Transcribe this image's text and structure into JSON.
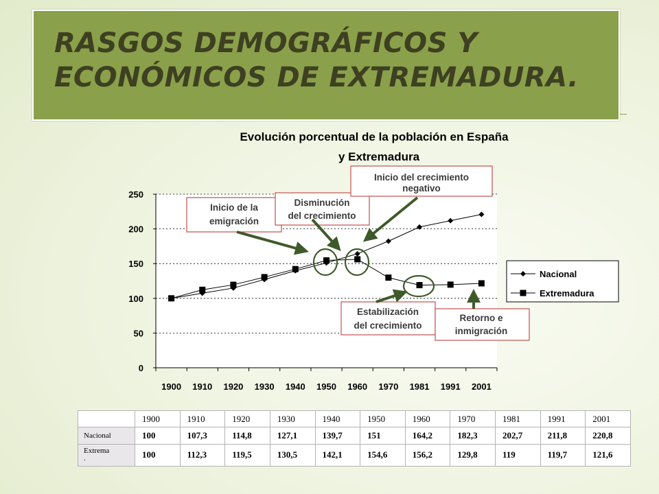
{
  "slide": {
    "title_line1": "RASGOS DEMOGRÁFICOS Y",
    "title_line2": "ECONÓMICOS DE EXTREMADURA."
  },
  "chart_data": {
    "type": "line",
    "title_line1": "Evolución porcentual de la población en España",
    "title_line2": "y  Extremadura",
    "categories": [
      "1900",
      "1910",
      "1920",
      "1930",
      "1940",
      "1950",
      "1960",
      "1970",
      "1981",
      "1991",
      "2001"
    ],
    "ylim": [
      0,
      250
    ],
    "yticks": [
      0,
      50,
      100,
      150,
      200,
      250
    ],
    "grid": true,
    "legend_position": "right",
    "series": [
      {
        "name": "Nacional",
        "marker": "diamond",
        "color": "#000000",
        "values": [
          100,
          107.3,
          114.8,
          127.1,
          139.7,
          151,
          164.2,
          182.3,
          202.7,
          211.8,
          220.8
        ]
      },
      {
        "name": "Extremadura",
        "marker": "square",
        "color": "#000000",
        "values": [
          100,
          112.3,
          119.5,
          130.5,
          142.1,
          154.6,
          156.2,
          129.8,
          119,
          119.7,
          121.6
        ]
      }
    ],
    "annotations": [
      {
        "lines": [
          "Inicio de la",
          "emigración"
        ]
      },
      {
        "lines": [
          "Disminución",
          "del crecimiento"
        ]
      },
      {
        "lines": [
          "Inicio del crecimiento",
          "negativo"
        ]
      },
      {
        "lines": [
          "Estabilización",
          "del crecimiento"
        ]
      },
      {
        "lines": [
          "Retorno e",
          "inmigración"
        ]
      }
    ],
    "highlight_years": [
      "1950",
      "1960",
      "1981"
    ]
  },
  "table": {
    "header": [
      "1900",
      "1910",
      "1920",
      "1930",
      "1940",
      "1950",
      "1960",
      "1970",
      "1981",
      "1991",
      "2001"
    ],
    "rows": [
      {
        "label": "Nacional",
        "values": [
          "100",
          "107,3",
          "114,8",
          "127,1",
          "139,7",
          "151",
          "164,2",
          "182,3",
          "202,7",
          "211,8",
          "220,8"
        ]
      },
      {
        "label": "Extrema\n.",
        "values": [
          "100",
          "112,3",
          "119,5",
          "130,5",
          "142,1",
          "154,6",
          "156,2",
          "129,8",
          "119",
          "119,7",
          "121,6"
        ]
      }
    ]
  }
}
